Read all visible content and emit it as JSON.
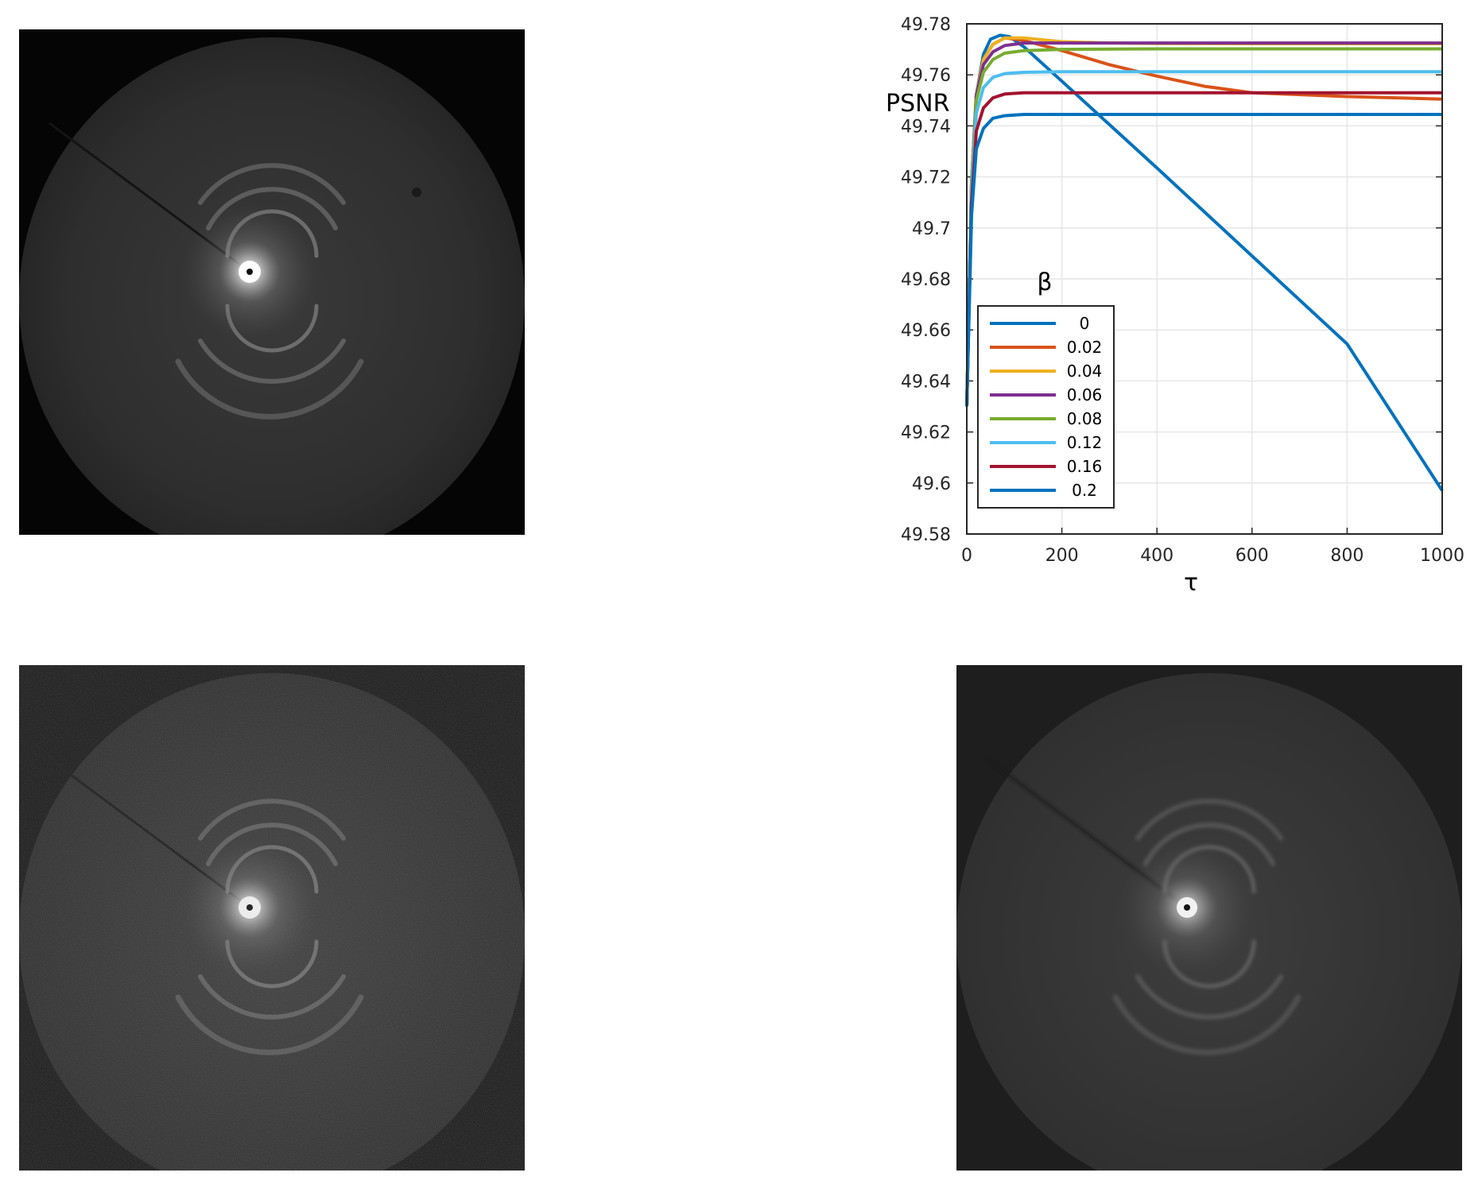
{
  "images": {
    "top_left": {
      "caption": ""
    },
    "bottom_left": {
      "caption": ""
    },
    "bottom_right": {
      "caption": ""
    }
  },
  "chart_data": {
    "type": "line",
    "title": "",
    "xlabel": "τ",
    "ylabel": "PSNR",
    "xlim": [
      0,
      1000
    ],
    "ylim": [
      49.58,
      49.78
    ],
    "xticks": [
      "0",
      "200",
      "400",
      "600",
      "800",
      "1000"
    ],
    "yticks": [
      "49.58",
      "49.6",
      "49.62",
      "49.64",
      "49.66",
      "49.68",
      "49.7",
      "49.72",
      "49.74",
      "49.76",
      "49.78"
    ],
    "grid": true,
    "legend_title": "β",
    "legend_position": "bottom-left",
    "series": [
      {
        "name": "0",
        "color": "#0072BD",
        "points": [
          [
            0,
            49.63
          ],
          [
            10,
            49.715
          ],
          [
            20,
            49.752
          ],
          [
            35,
            49.768
          ],
          [
            50,
            49.774
          ],
          [
            70,
            49.7755
          ],
          [
            90,
            49.775
          ],
          [
            120,
            49.771
          ],
          [
            200,
            49.7575
          ],
          [
            400,
            49.7235
          ],
          [
            600,
            49.689
          ],
          [
            800,
            49.6545
          ],
          [
            1000,
            49.597
          ]
        ]
      },
      {
        "name": "0.02",
        "color": "#D95319",
        "points": [
          [
            0,
            49.63
          ],
          [
            10,
            49.718
          ],
          [
            20,
            49.752
          ],
          [
            35,
            49.766
          ],
          [
            55,
            49.772
          ],
          [
            80,
            49.7745
          ],
          [
            120,
            49.7735
          ],
          [
            200,
            49.7695
          ],
          [
            300,
            49.764
          ],
          [
            400,
            49.7595
          ],
          [
            500,
            49.7555
          ],
          [
            600,
            49.753
          ],
          [
            800,
            49.7515
          ],
          [
            1000,
            49.7505
          ]
        ]
      },
      {
        "name": "0.04",
        "color": "#EDB120",
        "points": [
          [
            0,
            49.63
          ],
          [
            10,
            49.718
          ],
          [
            20,
            49.752
          ],
          [
            35,
            49.766
          ],
          [
            55,
            49.772
          ],
          [
            80,
            49.7745
          ],
          [
            120,
            49.7745
          ],
          [
            200,
            49.773
          ],
          [
            300,
            49.7725
          ],
          [
            400,
            49.7723
          ],
          [
            600,
            49.7722
          ],
          [
            1000,
            49.7722
          ]
        ]
      },
      {
        "name": "0.06",
        "color": "#7E2F8E",
        "points": [
          [
            0,
            49.63
          ],
          [
            10,
            49.718
          ],
          [
            20,
            49.752
          ],
          [
            35,
            49.764
          ],
          [
            55,
            49.769
          ],
          [
            80,
            49.7715
          ],
          [
            120,
            49.7725
          ],
          [
            200,
            49.7725
          ],
          [
            400,
            49.7725
          ],
          [
            1000,
            49.7725
          ]
        ]
      },
      {
        "name": "0.08",
        "color": "#77AC30",
        "points": [
          [
            0,
            49.63
          ],
          [
            10,
            49.718
          ],
          [
            20,
            49.75
          ],
          [
            35,
            49.761
          ],
          [
            55,
            49.766
          ],
          [
            80,
            49.7685
          ],
          [
            120,
            49.7695
          ],
          [
            200,
            49.77
          ],
          [
            400,
            49.7702
          ],
          [
            1000,
            49.7702
          ]
        ]
      },
      {
        "name": "0.12",
        "color": "#4DBEEE",
        "points": [
          [
            0,
            49.63
          ],
          [
            10,
            49.715
          ],
          [
            20,
            49.745
          ],
          [
            35,
            49.755
          ],
          [
            55,
            49.759
          ],
          [
            80,
            49.7605
          ],
          [
            120,
            49.761
          ],
          [
            200,
            49.7612
          ],
          [
            400,
            49.7612
          ],
          [
            1000,
            49.7612
          ]
        ]
      },
      {
        "name": "0.16",
        "color": "#A2142F",
        "points": [
          [
            0,
            49.63
          ],
          [
            10,
            49.71
          ],
          [
            20,
            49.738
          ],
          [
            35,
            49.747
          ],
          [
            55,
            49.751
          ],
          [
            80,
            49.7525
          ],
          [
            120,
            49.753
          ],
          [
            200,
            49.753
          ],
          [
            400,
            49.753
          ],
          [
            1000,
            49.753
          ]
        ]
      },
      {
        "name": "0.2",
        "color": "#0072BD",
        "points": [
          [
            0,
            49.63
          ],
          [
            10,
            49.705
          ],
          [
            20,
            49.731
          ],
          [
            35,
            49.739
          ],
          [
            55,
            49.743
          ],
          [
            80,
            49.744
          ],
          [
            120,
            49.7445
          ],
          [
            200,
            49.7445
          ],
          [
            400,
            49.7445
          ],
          [
            1000,
            49.7445
          ]
        ]
      }
    ]
  }
}
